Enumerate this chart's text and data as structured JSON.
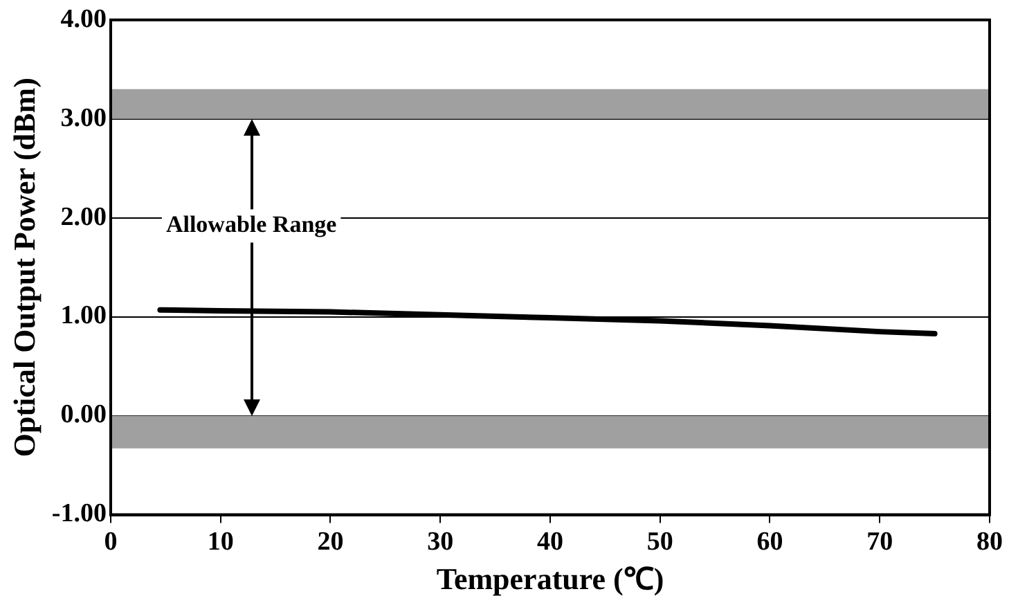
{
  "chart_data": {
    "type": "line",
    "xlabel": "Temperature (℃)",
    "ylabel": "Optical Output Power (dBm)",
    "x": [
      4.5,
      10,
      20,
      30,
      40,
      50,
      60,
      70,
      75
    ],
    "series": [
      {
        "color": "#000000",
        "values": [
          1.07,
          1.06,
          1.05,
          1.02,
          0.99,
          0.96,
          0.91,
          0.85,
          0.83
        ]
      }
    ],
    "xlim": [
      0,
      80
    ],
    "xticks": [
      0,
      10,
      20,
      30,
      40,
      50,
      60,
      70,
      80
    ],
    "ylim": [
      -1,
      4
    ],
    "yticks": [
      {
        "value": -1,
        "label": "-1.00"
      },
      {
        "value": 0,
        "label": "0.00"
      },
      {
        "value": 1,
        "label": "1.00"
      },
      {
        "value": 2,
        "label": "2.00"
      },
      {
        "value": 3,
        "label": "3.00"
      },
      {
        "value": 4,
        "label": "4.00"
      }
    ],
    "bands": [
      {
        "axis": "y",
        "from": 3.0,
        "to": 3.3,
        "color": "#a0a0a0"
      },
      {
        "axis": "y",
        "from": -0.33,
        "to": 0,
        "color": "#a0a0a0"
      }
    ],
    "annotations": [
      "Allowable Range"
    ],
    "grid": "y",
    "legend": false,
    "marker": "none",
    "line_style": "solid"
  }
}
